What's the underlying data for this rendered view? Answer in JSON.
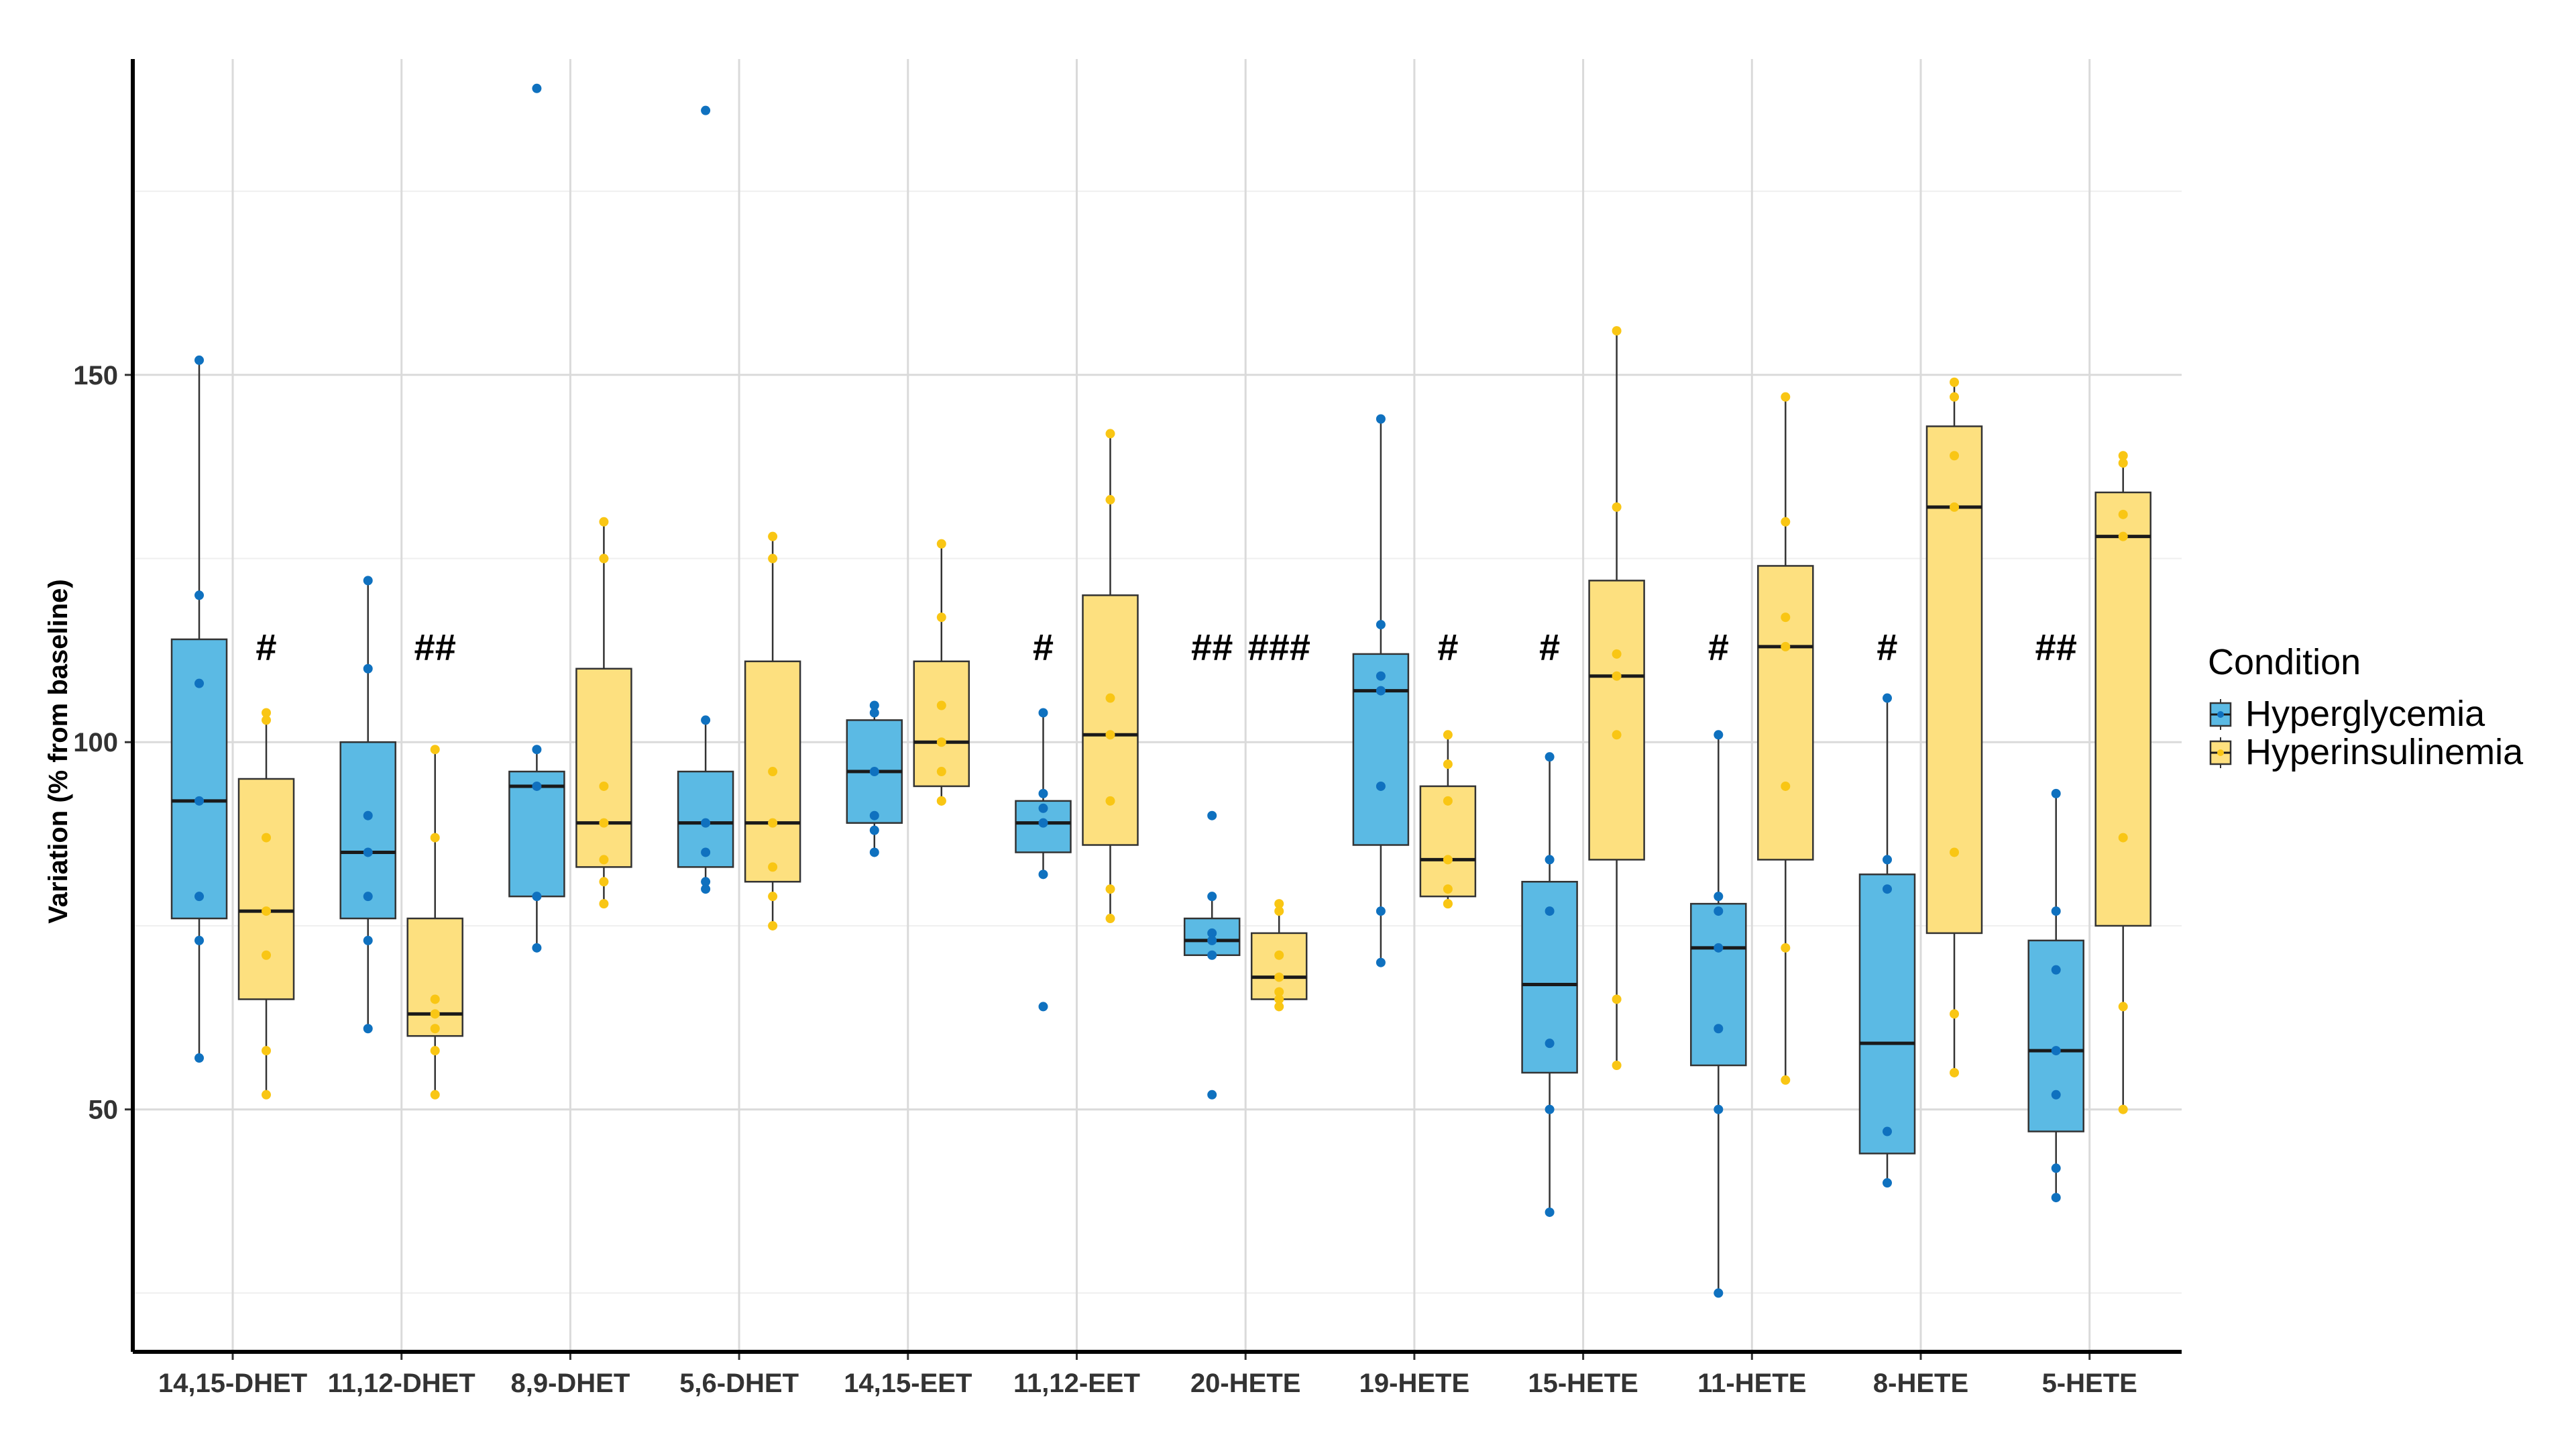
{
  "chart_data": {
    "type": "boxplot",
    "title": "",
    "xlabel": "",
    "ylabel": "Variation (% from baseline)",
    "ylim": [
      17,
      193
    ],
    "yticks": [
      50,
      100,
      150
    ],
    "ytick_labels": [
      "50",
      "100",
      "150"
    ],
    "grid": true,
    "legend": {
      "title": "Condition",
      "position": "right",
      "entries": [
        "Hyperglycemia",
        "Hyperinsulinemia"
      ]
    },
    "colors": {
      "Hyperglycemia": {
        "fill": "#5bbae4",
        "point": "#0f71bf"
      },
      "Hyperinsulinemia": {
        "fill": "#fde07f",
        "point": "#f9c614"
      },
      "grid_major": "#dadada",
      "grid_minor": "#efefef",
      "axis": "#000000"
    },
    "categories": [
      "14,15-DHET",
      "11,12-DHET",
      "8,9-DHET",
      "5,6-DHET",
      "14,15-EET",
      "11,12-EET",
      "20-HETE",
      "19-HETE",
      "15-HETE",
      "11-HETE",
      "8-HETE",
      "5-HETE"
    ],
    "series": [
      {
        "name": "Hyperglycemia",
        "boxes": [
          {
            "min": 57,
            "q1": 76,
            "median": 92,
            "q3": 114,
            "max": 152,
            "points": [
              152,
              120,
              108,
              92,
              79,
              73,
              57
            ]
          },
          {
            "min": 61,
            "q1": 76,
            "median": 85,
            "q3": 100,
            "max": 122,
            "points": [
              122,
              110,
              90,
              85,
              79,
              73,
              61
            ]
          },
          {
            "min": 72,
            "q1": 79,
            "median": 94,
            "q3": 96,
            "max": 99,
            "points": [
              189,
              99,
              94,
              79,
              72
            ]
          },
          {
            "min": 80,
            "q1": 83,
            "median": 89,
            "q3": 96,
            "max": 103,
            "points": [
              186,
              103,
              89,
              85,
              81,
              80
            ]
          },
          {
            "min": 85,
            "q1": 89,
            "median": 96,
            "q3": 103,
            "max": 105,
            "points": [
              105,
              104,
              96,
              90,
              88,
              85
            ]
          },
          {
            "min": 82,
            "q1": 85,
            "median": 89,
            "q3": 92,
            "max": 104,
            "points": [
              104,
              93,
              91,
              89,
              82,
              64
            ]
          },
          {
            "min": 71,
            "q1": 71,
            "median": 73,
            "q3": 76,
            "max": 79,
            "points": [
              90,
              79,
              74,
              73,
              71,
              52
            ]
          },
          {
            "min": 70,
            "q1": 86,
            "median": 107,
            "q3": 112,
            "max": 144,
            "points": [
              144,
              116,
              109,
              107,
              94,
              77,
              70
            ]
          },
          {
            "min": 36,
            "q1": 55,
            "median": 67,
            "q3": 81,
            "max": 98,
            "points": [
              98,
              84,
              77,
              59,
              50,
              36
            ]
          },
          {
            "min": 25,
            "q1": 56,
            "median": 72,
            "q3": 78,
            "max": 101,
            "points": [
              101,
              79,
              77,
              72,
              61,
              50,
              25
            ]
          },
          {
            "min": 40,
            "q1": 44,
            "median": 59,
            "q3": 82,
            "max": 106,
            "points": [
              106,
              84,
              80,
              47,
              40
            ]
          },
          {
            "min": 38,
            "q1": 47,
            "median": 58,
            "q3": 73,
            "max": 93,
            "points": [
              93,
              77,
              69,
              58,
              52,
              42,
              38
            ]
          }
        ]
      },
      {
        "name": "Hyperinsulinemia",
        "boxes": [
          {
            "min": 52,
            "q1": 65,
            "median": 77,
            "q3": 95,
            "max": 104,
            "points": [
              104,
              103,
              87,
              77,
              71,
              58,
              52
            ]
          },
          {
            "min": 52,
            "q1": 60,
            "median": 63,
            "q3": 76,
            "max": 99,
            "points": [
              99,
              87,
              65,
              63,
              61,
              58,
              52
            ]
          },
          {
            "min": 78,
            "q1": 83,
            "median": 89,
            "q3": 110,
            "max": 130,
            "points": [
              130,
              125,
              94,
              89,
              84,
              81,
              78
            ]
          },
          {
            "min": 75,
            "q1": 81,
            "median": 89,
            "q3": 111,
            "max": 128,
            "points": [
              128,
              125,
              96,
              89,
              83,
              79,
              75
            ]
          },
          {
            "min": 92,
            "q1": 94,
            "median": 100,
            "q3": 111,
            "max": 127,
            "points": [
              127,
              117,
              105,
              100,
              96,
              92,
              92
            ]
          },
          {
            "min": 76,
            "q1": 86,
            "median": 101,
            "q3": 120,
            "max": 142,
            "points": [
              142,
              133,
              106,
              101,
              92,
              80,
              76
            ]
          },
          {
            "min": 64,
            "q1": 65,
            "median": 68,
            "q3": 74,
            "max": 78,
            "points": [
              78,
              77,
              71,
              68,
              66,
              65,
              64
            ]
          },
          {
            "min": 78,
            "q1": 79,
            "median": 84,
            "q3": 94,
            "max": 101,
            "points": [
              101,
              97,
              92,
              84,
              80,
              78,
              78
            ]
          },
          {
            "min": 56,
            "q1": 84,
            "median": 109,
            "q3": 122,
            "max": 156,
            "points": [
              156,
              132,
              112,
              109,
              101,
              65,
              56
            ]
          },
          {
            "min": 54,
            "q1": 84,
            "median": 113,
            "q3": 124,
            "max": 147,
            "points": [
              147,
              130,
              117,
              113,
              94,
              72,
              54
            ]
          },
          {
            "min": 55,
            "q1": 74,
            "median": 132,
            "q3": 143,
            "max": 149,
            "points": [
              149,
              147,
              139,
              132,
              85,
              63,
              55
            ]
          },
          {
            "min": 50,
            "q1": 75,
            "median": 128,
            "q3": 134,
            "max": 139,
            "points": [
              139,
              138,
              131,
              128,
              87,
              64,
              50
            ]
          }
        ]
      }
    ],
    "annotations": [
      {
        "category": "14,15-DHET",
        "group": "Hyperinsulinemia",
        "text": "#"
      },
      {
        "category": "11,12-DHET",
        "group": "Hyperinsulinemia",
        "text": "##"
      },
      {
        "category": "11,12-EET",
        "group": "Hyperglycemia",
        "text": "#"
      },
      {
        "category": "20-HETE",
        "group": "Hyperglycemia",
        "text": "##"
      },
      {
        "category": "20-HETE",
        "group": "Hyperinsulinemia",
        "text": "###"
      },
      {
        "category": "19-HETE",
        "group": "Hyperinsulinemia",
        "text": "#"
      },
      {
        "category": "15-HETE",
        "group": "Hyperglycemia",
        "text": "#"
      },
      {
        "category": "11-HETE",
        "group": "Hyperglycemia",
        "text": "#"
      },
      {
        "category": "8-HETE",
        "group": "Hyperglycemia",
        "text": "#"
      },
      {
        "category": "5-HETE",
        "group": "Hyperglycemia",
        "text": "##"
      }
    ]
  }
}
